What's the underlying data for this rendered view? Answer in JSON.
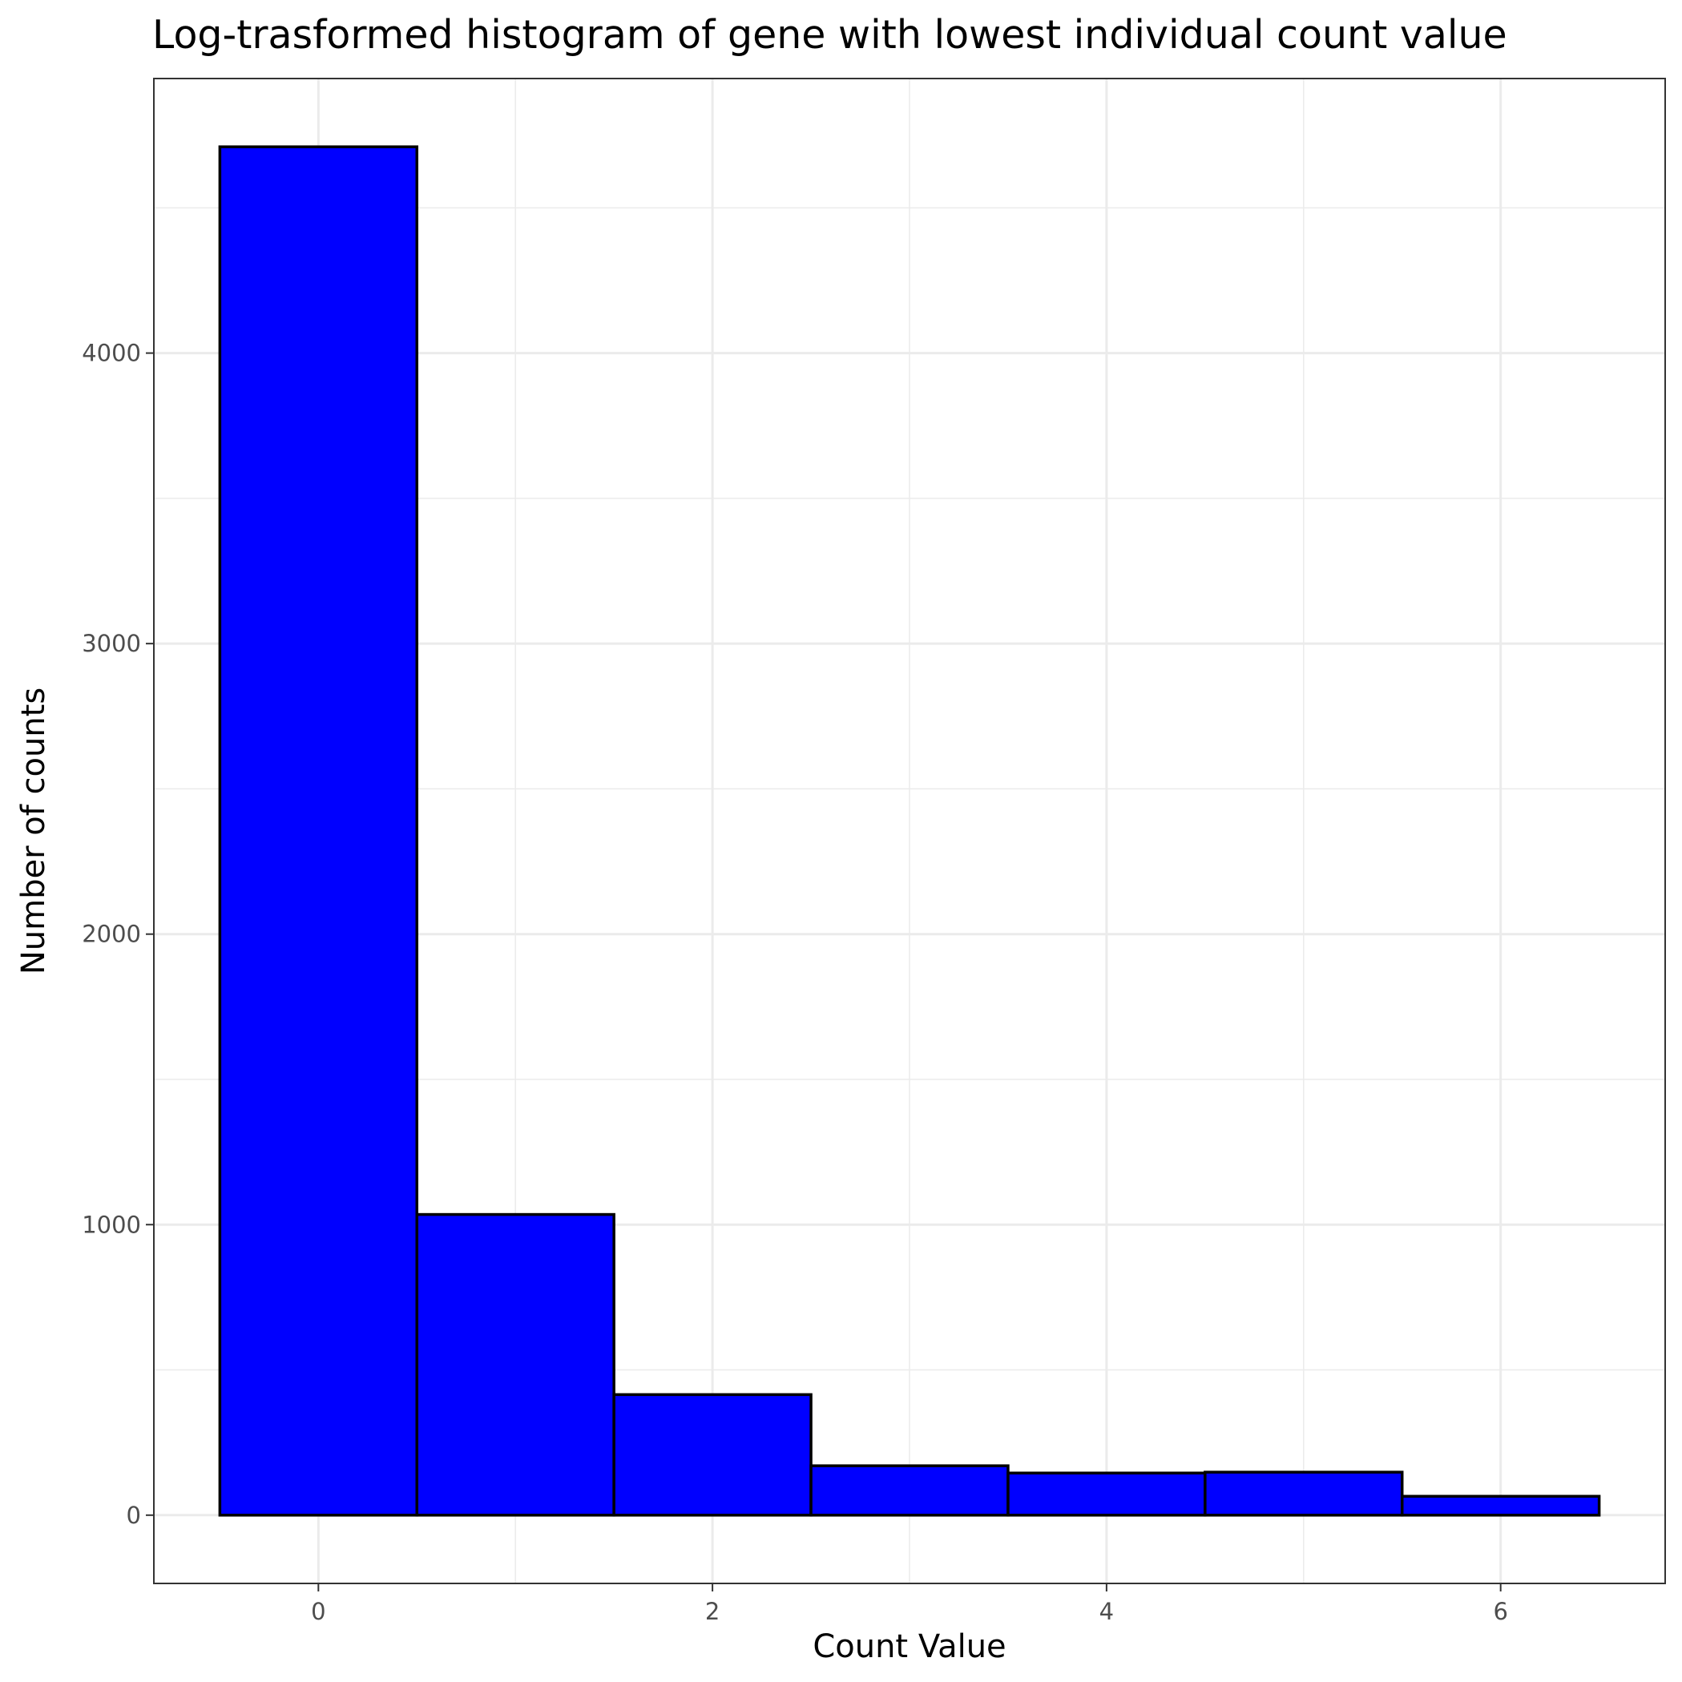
{
  "chart_data": {
    "type": "bar",
    "title": "Log-trasformed histogram of gene with lowest individual count value",
    "xlabel": "Count Value",
    "ylabel": "Number of counts",
    "x_ticks": [
      "0",
      "2",
      "4",
      "6"
    ],
    "y_ticks": [
      "0",
      "1000",
      "2000",
      "3000",
      "4000"
    ],
    "x_tick_values": [
      0,
      2,
      4,
      6
    ],
    "y_tick_values": [
      0,
      1000,
      2000,
      3000,
      4000
    ],
    "bins": [
      {
        "x": 0,
        "count": 4710
      },
      {
        "x": 1,
        "count": 1035
      },
      {
        "x": 2,
        "count": 415
      },
      {
        "x": 3,
        "count": 170
      },
      {
        "x": 4,
        "count": 145
      },
      {
        "x": 5,
        "count": 148
      },
      {
        "x": 6,
        "count": 65
      }
    ],
    "bin_width": 1,
    "xlim": [
      -0.835,
      6.835
    ],
    "ylim": [
      -235,
      4945
    ],
    "grid": true,
    "legend": "none",
    "colors": {
      "bar_fill": "#0000ff",
      "bar_outline": "#000000",
      "grid": "#ebebeb",
      "panel_border": "#333333",
      "tick_label": "#4d4d4d"
    }
  }
}
